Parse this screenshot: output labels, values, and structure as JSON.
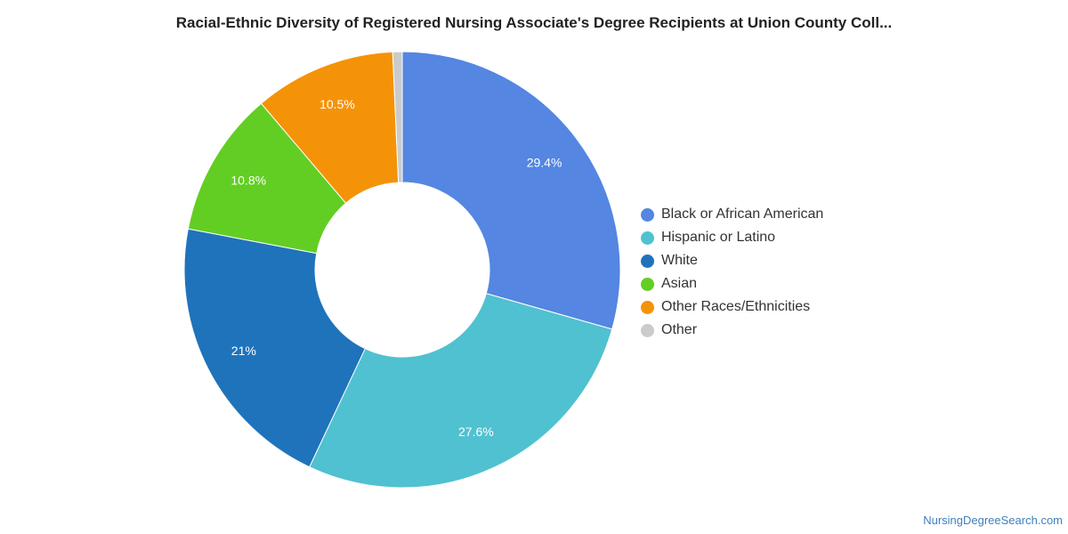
{
  "chart_data": {
    "type": "pie",
    "title": "Racial-Ethnic Diversity of Registered Nursing Associate's Degree Recipients at Union County Coll...",
    "legend_position": "right",
    "categories": [
      "Black or African American",
      "Hispanic or Latino",
      "White",
      "Asian",
      "Other Races/Ethnicities",
      "Other"
    ],
    "values": [
      29.4,
      27.6,
      21,
      10.8,
      10.5,
      0.7
    ],
    "labels": [
      "29.4%",
      "27.6%",
      "21%",
      "10.8%",
      "10.5%",
      ""
    ],
    "colors": [
      "#5486e2",
      "#50c1d0",
      "#1f73bb",
      "#62ce23",
      "#f59308",
      "#cbcbcb"
    ]
  },
  "watermark": "NursingDegreeSearch.com"
}
